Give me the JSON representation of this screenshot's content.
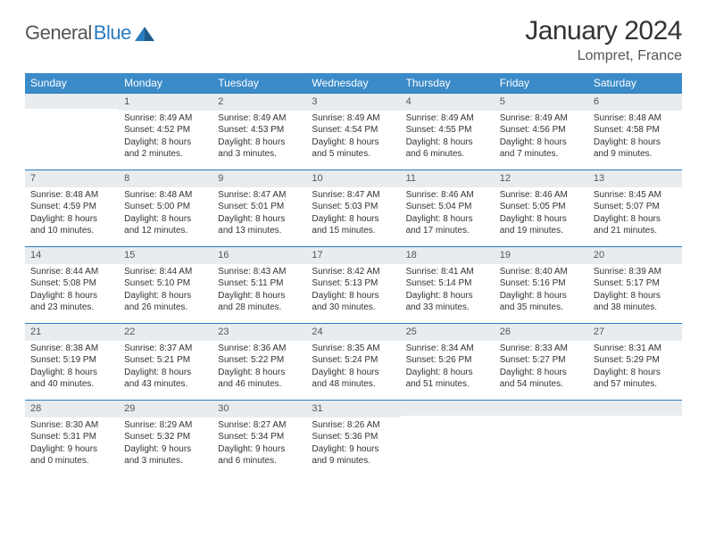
{
  "logo": {
    "text_a": "General",
    "text_b": "Blue"
  },
  "title": "January 2024",
  "location": "Lompret, France",
  "colors": {
    "header_bg": "#3b8bc9",
    "header_text": "#ffffff",
    "daynum_bg": "#e9ecef",
    "daynum_border_top": "#2a7bbf",
    "body_text": "#333333",
    "logo_blue": "#2a7bbf"
  },
  "weekdays": [
    "Sunday",
    "Monday",
    "Tuesday",
    "Wednesday",
    "Thursday",
    "Friday",
    "Saturday"
  ],
  "grid": [
    [
      {
        "num": "",
        "sunrise": "",
        "sunset": "",
        "daylight": ""
      },
      {
        "num": "1",
        "sunrise": "Sunrise: 8:49 AM",
        "sunset": "Sunset: 4:52 PM",
        "daylight": "Daylight: 8 hours and 2 minutes."
      },
      {
        "num": "2",
        "sunrise": "Sunrise: 8:49 AM",
        "sunset": "Sunset: 4:53 PM",
        "daylight": "Daylight: 8 hours and 3 minutes."
      },
      {
        "num": "3",
        "sunrise": "Sunrise: 8:49 AM",
        "sunset": "Sunset: 4:54 PM",
        "daylight": "Daylight: 8 hours and 5 minutes."
      },
      {
        "num": "4",
        "sunrise": "Sunrise: 8:49 AM",
        "sunset": "Sunset: 4:55 PM",
        "daylight": "Daylight: 8 hours and 6 minutes."
      },
      {
        "num": "5",
        "sunrise": "Sunrise: 8:49 AM",
        "sunset": "Sunset: 4:56 PM",
        "daylight": "Daylight: 8 hours and 7 minutes."
      },
      {
        "num": "6",
        "sunrise": "Sunrise: 8:48 AM",
        "sunset": "Sunset: 4:58 PM",
        "daylight": "Daylight: 8 hours and 9 minutes."
      }
    ],
    [
      {
        "num": "7",
        "sunrise": "Sunrise: 8:48 AM",
        "sunset": "Sunset: 4:59 PM",
        "daylight": "Daylight: 8 hours and 10 minutes."
      },
      {
        "num": "8",
        "sunrise": "Sunrise: 8:48 AM",
        "sunset": "Sunset: 5:00 PM",
        "daylight": "Daylight: 8 hours and 12 minutes."
      },
      {
        "num": "9",
        "sunrise": "Sunrise: 8:47 AM",
        "sunset": "Sunset: 5:01 PM",
        "daylight": "Daylight: 8 hours and 13 minutes."
      },
      {
        "num": "10",
        "sunrise": "Sunrise: 8:47 AM",
        "sunset": "Sunset: 5:03 PM",
        "daylight": "Daylight: 8 hours and 15 minutes."
      },
      {
        "num": "11",
        "sunrise": "Sunrise: 8:46 AM",
        "sunset": "Sunset: 5:04 PM",
        "daylight": "Daylight: 8 hours and 17 minutes."
      },
      {
        "num": "12",
        "sunrise": "Sunrise: 8:46 AM",
        "sunset": "Sunset: 5:05 PM",
        "daylight": "Daylight: 8 hours and 19 minutes."
      },
      {
        "num": "13",
        "sunrise": "Sunrise: 8:45 AM",
        "sunset": "Sunset: 5:07 PM",
        "daylight": "Daylight: 8 hours and 21 minutes."
      }
    ],
    [
      {
        "num": "14",
        "sunrise": "Sunrise: 8:44 AM",
        "sunset": "Sunset: 5:08 PM",
        "daylight": "Daylight: 8 hours and 23 minutes."
      },
      {
        "num": "15",
        "sunrise": "Sunrise: 8:44 AM",
        "sunset": "Sunset: 5:10 PM",
        "daylight": "Daylight: 8 hours and 26 minutes."
      },
      {
        "num": "16",
        "sunrise": "Sunrise: 8:43 AM",
        "sunset": "Sunset: 5:11 PM",
        "daylight": "Daylight: 8 hours and 28 minutes."
      },
      {
        "num": "17",
        "sunrise": "Sunrise: 8:42 AM",
        "sunset": "Sunset: 5:13 PM",
        "daylight": "Daylight: 8 hours and 30 minutes."
      },
      {
        "num": "18",
        "sunrise": "Sunrise: 8:41 AM",
        "sunset": "Sunset: 5:14 PM",
        "daylight": "Daylight: 8 hours and 33 minutes."
      },
      {
        "num": "19",
        "sunrise": "Sunrise: 8:40 AM",
        "sunset": "Sunset: 5:16 PM",
        "daylight": "Daylight: 8 hours and 35 minutes."
      },
      {
        "num": "20",
        "sunrise": "Sunrise: 8:39 AM",
        "sunset": "Sunset: 5:17 PM",
        "daylight": "Daylight: 8 hours and 38 minutes."
      }
    ],
    [
      {
        "num": "21",
        "sunrise": "Sunrise: 8:38 AM",
        "sunset": "Sunset: 5:19 PM",
        "daylight": "Daylight: 8 hours and 40 minutes."
      },
      {
        "num": "22",
        "sunrise": "Sunrise: 8:37 AM",
        "sunset": "Sunset: 5:21 PM",
        "daylight": "Daylight: 8 hours and 43 minutes."
      },
      {
        "num": "23",
        "sunrise": "Sunrise: 8:36 AM",
        "sunset": "Sunset: 5:22 PM",
        "daylight": "Daylight: 8 hours and 46 minutes."
      },
      {
        "num": "24",
        "sunrise": "Sunrise: 8:35 AM",
        "sunset": "Sunset: 5:24 PM",
        "daylight": "Daylight: 8 hours and 48 minutes."
      },
      {
        "num": "25",
        "sunrise": "Sunrise: 8:34 AM",
        "sunset": "Sunset: 5:26 PM",
        "daylight": "Daylight: 8 hours and 51 minutes."
      },
      {
        "num": "26",
        "sunrise": "Sunrise: 8:33 AM",
        "sunset": "Sunset: 5:27 PM",
        "daylight": "Daylight: 8 hours and 54 minutes."
      },
      {
        "num": "27",
        "sunrise": "Sunrise: 8:31 AM",
        "sunset": "Sunset: 5:29 PM",
        "daylight": "Daylight: 8 hours and 57 minutes."
      }
    ],
    [
      {
        "num": "28",
        "sunrise": "Sunrise: 8:30 AM",
        "sunset": "Sunset: 5:31 PM",
        "daylight": "Daylight: 9 hours and 0 minutes."
      },
      {
        "num": "29",
        "sunrise": "Sunrise: 8:29 AM",
        "sunset": "Sunset: 5:32 PM",
        "daylight": "Daylight: 9 hours and 3 minutes."
      },
      {
        "num": "30",
        "sunrise": "Sunrise: 8:27 AM",
        "sunset": "Sunset: 5:34 PM",
        "daylight": "Daylight: 9 hours and 6 minutes."
      },
      {
        "num": "31",
        "sunrise": "Sunrise: 8:26 AM",
        "sunset": "Sunset: 5:36 PM",
        "daylight": "Daylight: 9 hours and 9 minutes."
      },
      {
        "num": "",
        "sunrise": "",
        "sunset": "",
        "daylight": ""
      },
      {
        "num": "",
        "sunrise": "",
        "sunset": "",
        "daylight": ""
      },
      {
        "num": "",
        "sunrise": "",
        "sunset": "",
        "daylight": ""
      }
    ]
  ]
}
